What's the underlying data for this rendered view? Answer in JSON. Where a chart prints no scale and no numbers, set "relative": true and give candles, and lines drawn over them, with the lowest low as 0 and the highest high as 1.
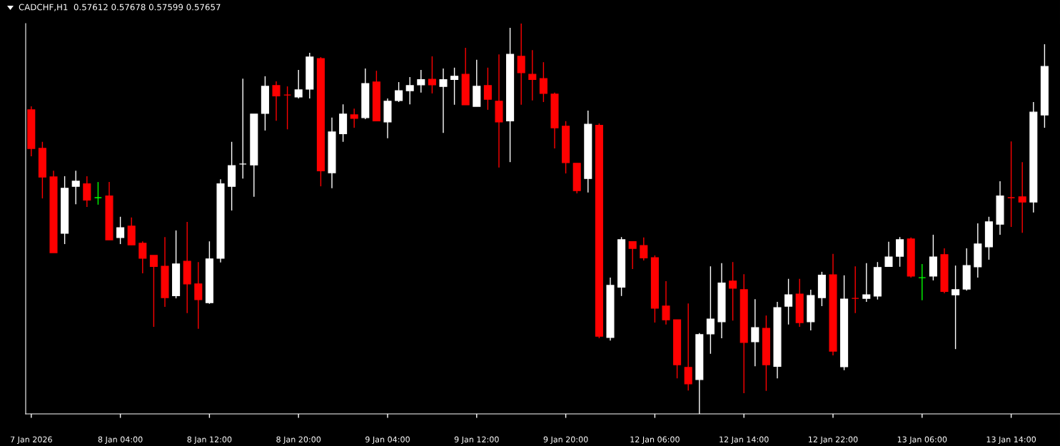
{
  "chart_data": {
    "type": "candlestick",
    "title": "CADCHF,H1  0.57612 0.57678 0.57599 0.57657",
    "relative": true,
    "categories": [
      "7 Jan 2026",
      null,
      null,
      null,
      null,
      null,
      null,
      null,
      "8 Jan 04:00",
      null,
      null,
      null,
      null,
      null,
      null,
      null,
      "8 Jan 12:00",
      null,
      null,
      null,
      null,
      null,
      null,
      null,
      "8 Jan 20:00",
      null,
      null,
      null,
      null,
      null,
      null,
      null,
      "9 Jan 04:00",
      null,
      null,
      null,
      null,
      null,
      null,
      null,
      "9 Jan 12:00",
      null,
      null,
      null,
      null,
      null,
      null,
      null,
      "9 Jan 20:00",
      null,
      null,
      null,
      null,
      null,
      null,
      null,
      "12 Jan 06:00",
      null,
      null,
      null,
      null,
      null,
      null,
      null,
      "12 Jan 14:00",
      null,
      null,
      null,
      null,
      null,
      null,
      null,
      "12 Jan 22:00",
      null,
      null,
      null,
      null,
      null,
      null,
      null,
      "13 Jan 06:00",
      null,
      null,
      null,
      null,
      null,
      null,
      null,
      "13 Jan 14:00",
      null,
      null,
      null
    ],
    "ohlc": [
      [
        0.779,
        0.788,
        0.66,
        0.68
      ],
      [
        0.68,
        0.697,
        0.552,
        0.607
      ],
      [
        0.607,
        0.623,
        0.413,
        0.413
      ],
      [
        0.463,
        0.609,
        0.435,
        0.578
      ],
      [
        0.583,
        0.623,
        0.537,
        0.596
      ],
      [
        0.589,
        0.609,
        0.53,
        0.548
      ],
      [
        0.554,
        0.594,
        0.536,
        0.554
      ],
      [
        0.558,
        0.594,
        0.446,
        0.446
      ],
      [
        0.452,
        0.505,
        0.435,
        0.477
      ],
      [
        0.481,
        0.503,
        0.433,
        0.433
      ],
      [
        0.437,
        0.442,
        0.36,
        0.399
      ],
      [
        0.406,
        0.406,
        0.223,
        0.378
      ],
      [
        0.378,
        0.453,
        0.274,
        0.298
      ],
      [
        0.303,
        0.47,
        0.296,
        0.384
      ],
      [
        0.391,
        0.492,
        0.258,
        0.333
      ],
      [
        0.333,
        0.389,
        0.218,
        0.293
      ],
      [
        0.285,
        0.442,
        0.282,
        0.397
      ],
      [
        0.399,
        0.601,
        0.388,
        0.589
      ],
      [
        0.583,
        0.697,
        0.521,
        0.636
      ],
      [
        0.64,
        0.859,
        0.603,
        0.64
      ],
      [
        0.638,
        0.768,
        0.556,
        0.768
      ],
      [
        0.77,
        0.865,
        0.726,
        0.839
      ],
      [
        0.841,
        0.852,
        0.751,
        0.815
      ],
      [
        0.817,
        0.839,
        0.729,
        0.817
      ],
      [
        0.812,
        0.881,
        0.808,
        0.83
      ],
      [
        0.832,
        0.925,
        0.808,
        0.914
      ],
      [
        0.91,
        0.914,
        0.583,
        0.623
      ],
      [
        0.618,
        0.759,
        0.578,
        0.722
      ],
      [
        0.718,
        0.793,
        0.697,
        0.768
      ],
      [
        0.766,
        0.782,
        0.733,
        0.757
      ],
      [
        0.759,
        0.885,
        0.755,
        0.846
      ],
      [
        0.85,
        0.879,
        0.751,
        0.751
      ],
      [
        0.748,
        0.808,
        0.706,
        0.801
      ],
      [
        0.803,
        0.85,
        0.799,
        0.828
      ],
      [
        0.828,
        0.863,
        0.793,
        0.841
      ],
      [
        0.843,
        0.881,
        0.823,
        0.856
      ],
      [
        0.857,
        0.916,
        0.821,
        0.843
      ],
      [
        0.839,
        0.885,
        0.72,
        0.856
      ],
      [
        0.857,
        0.887,
        0.792,
        0.865
      ],
      [
        0.87,
        0.938,
        0.792,
        0.792
      ],
      [
        0.788,
        0.907,
        0.788,
        0.839
      ],
      [
        0.841,
        0.887,
        0.779,
        0.806
      ],
      [
        0.801,
        0.921,
        0.631,
        0.748
      ],
      [
        0.751,
        0.989,
        0.645,
        0.921
      ],
      [
        0.916,
        1.0,
        0.792,
        0.874
      ],
      [
        0.87,
        0.932,
        0.803,
        0.857
      ],
      [
        0.859,
        0.901,
        0.799,
        0.821
      ],
      [
        0.819,
        0.823,
        0.68,
        0.733
      ],
      [
        0.737,
        0.75,
        0.616,
        0.644
      ],
      [
        0.642,
        0.642,
        0.565,
        0.572
      ],
      [
        0.603,
        0.777,
        0.567,
        0.742
      ],
      [
        0.739,
        0.744,
        0.194,
        0.199
      ],
      [
        0.196,
        0.349,
        0.188,
        0.329
      ],
      [
        0.325,
        0.453,
        0.302,
        0.446
      ],
      [
        0.441,
        0.441,
        0.371,
        0.424
      ],
      [
        0.431,
        0.452,
        0.393,
        0.4
      ],
      [
        0.4,
        0.406,
        0.234,
        0.271
      ],
      [
        0.276,
        0.34,
        0.229,
        0.241
      ],
      [
        0.241,
        0.241,
        0.091,
        0.126
      ],
      [
        0.119,
        0.283,
        0.06,
        0.077
      ],
      [
        0.088,
        0.207,
        0.0,
        0.203
      ],
      [
        0.205,
        0.378,
        0.154,
        0.243
      ],
      [
        0.236,
        0.386,
        0.194,
        0.335
      ],
      [
        0.34,
        0.389,
        0.239,
        0.322
      ],
      [
        0.318,
        0.358,
        0.053,
        0.183
      ],
      [
        0.185,
        0.294,
        0.122,
        0.221
      ],
      [
        0.219,
        0.252,
        0.059,
        0.126
      ],
      [
        0.122,
        0.287,
        0.091,
        0.272
      ],
      [
        0.276,
        0.346,
        0.229,
        0.305
      ],
      [
        0.307,
        0.346,
        0.223,
        0.234
      ],
      [
        0.236,
        0.318,
        0.214,
        0.303
      ],
      [
        0.298,
        0.364,
        0.276,
        0.355
      ],
      [
        0.356,
        0.41,
        0.15,
        0.161
      ],
      [
        0.121,
        0.355,
        0.112,
        0.294
      ],
      [
        0.296,
        0.378,
        0.258,
        0.296
      ],
      [
        0.296,
        0.386,
        0.287,
        0.305
      ],
      [
        0.302,
        0.389,
        0.293,
        0.375
      ],
      [
        0.378,
        0.441,
        0.377,
        0.402
      ],
      [
        0.404,
        0.453,
        0.377,
        0.446
      ],
      [
        0.448,
        0.452,
        0.349,
        0.353
      ],
      [
        0.349,
        0.384,
        0.291,
        0.349
      ],
      [
        0.353,
        0.459,
        0.342,
        0.402
      ],
      [
        0.408,
        0.424,
        0.309,
        0.314
      ],
      [
        0.305,
        0.38,
        0.166,
        0.318
      ],
      [
        0.32,
        0.424,
        0.316,
        0.38
      ],
      [
        0.377,
        0.488,
        0.349,
        0.435
      ],
      [
        0.428,
        0.505,
        0.395,
        0.492
      ],
      [
        0.486,
        0.596,
        0.459,
        0.558
      ],
      [
        0.554,
        0.698,
        0.479,
        0.554
      ],
      [
        0.556,
        0.645,
        0.464,
        0.543
      ],
      [
        0.543,
        0.799,
        0.516,
        0.773
      ],
      [
        0.766,
        0.947,
        0.733,
        0.89
      ]
    ],
    "colors": [
      "#ff0000",
      "#ff0000",
      "#ff0000",
      "#ffffff",
      "#ffffff",
      "#ff0000",
      "#00ff00",
      "#ff0000",
      "#ffffff",
      "#ff0000",
      "#ff0000",
      "#ff0000",
      "#ff0000",
      "#ffffff",
      "#ff0000",
      "#ff0000",
      "#ffffff",
      "#ffffff",
      "#ffffff",
      "#ffffff",
      "#ffffff",
      "#ffffff",
      "#ff0000",
      "#ff0000",
      "#ffffff",
      "#ffffff",
      "#ff0000",
      "#ffffff",
      "#ffffff",
      "#ff0000",
      "#ffffff",
      "#ff0000",
      "#ffffff",
      "#ffffff",
      "#ffffff",
      "#ffffff",
      "#ff0000",
      "#ffffff",
      "#ffffff",
      "#ff0000",
      "#ffffff",
      "#ff0000",
      "#ff0000",
      "#ffffff",
      "#ff0000",
      "#ff0000",
      "#ff0000",
      "#ff0000",
      "#ff0000",
      "#ff0000",
      "#ffffff",
      "#ff0000",
      "#ffffff",
      "#ffffff",
      "#ff0000",
      "#ff0000",
      "#ff0000",
      "#ff0000",
      "#ff0000",
      "#ff0000",
      "#ffffff",
      "#ffffff",
      "#ffffff",
      "#ff0000",
      "#ff0000",
      "#ffffff",
      "#ff0000",
      "#ffffff",
      "#ffffff",
      "#ff0000",
      "#ffffff",
      "#ffffff",
      "#ff0000",
      "#ffffff",
      "#ff0000",
      "#ffffff",
      "#ffffff",
      "#ffffff",
      "#ffffff",
      "#ff0000",
      "#00ff00",
      "#ffffff",
      "#ff0000",
      "#ffffff",
      "#ffffff",
      "#ffffff",
      "#ffffff",
      "#ffffff",
      "#ff0000",
      "#ff0000",
      "#ffffff",
      "#ffffff"
    ]
  }
}
